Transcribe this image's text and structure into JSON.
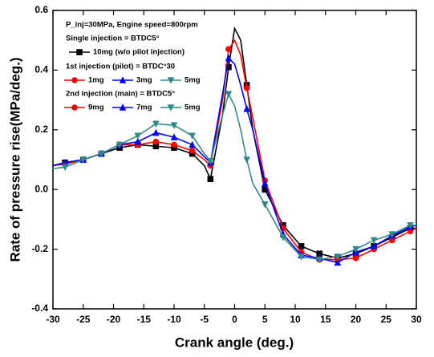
{
  "chart_data": {
    "type": "line",
    "x_label": "Crank angle (deg.)",
    "y_label": "Rate of pressure rise(MPa/deg.)",
    "annotation": "P_inj=30MPa, Engine speed=800rpm",
    "legend_titles": [
      "Single injection = BTDC5°",
      "1st injection (pilot) = BTDC°30",
      "2nd injection (main) = BTDC5°"
    ],
    "x": [
      -30,
      -28,
      -25,
      -22,
      -19,
      -16,
      -13,
      -10,
      -7,
      -5,
      -4,
      -2,
      -1,
      0,
      1,
      2,
      3,
      5,
      8,
      11,
      14,
      17,
      20,
      23,
      26,
      29,
      30
    ],
    "series": [
      {
        "name": "10mg (w/o pilot injection)",
        "color": "#000000",
        "marker": "square",
        "values": [
          0.08,
          0.09,
          0.1,
          0.12,
          0.14,
          0.15,
          0.145,
          0.14,
          0.12,
          0.08,
          0.035,
          0.25,
          0.41,
          0.54,
          0.5,
          0.35,
          0.2,
          0.0,
          -0.12,
          -0.19,
          -0.215,
          -0.23,
          -0.215,
          -0.19,
          -0.16,
          -0.13,
          -0.13
        ]
      },
      {
        "name": "1mg",
        "main_name": "9mg",
        "color": "#ff0000",
        "marker": "circle",
        "values": [
          0.08,
          0.085,
          0.1,
          0.12,
          0.15,
          0.15,
          0.16,
          0.15,
          0.13,
          0.1,
          0.08,
          0.3,
          0.47,
          0.5,
          0.45,
          0.34,
          0.24,
          0.03,
          -0.13,
          -0.21,
          -0.235,
          -0.235,
          -0.23,
          -0.2,
          -0.17,
          -0.14,
          -0.13
        ]
      },
      {
        "name": "3mg",
        "main_name": "7mg",
        "color": "#0000ff",
        "marker": "triangle-up",
        "values": [
          0.08,
          0.09,
          0.1,
          0.12,
          0.15,
          0.16,
          0.19,
          0.175,
          0.15,
          0.11,
          0.09,
          0.32,
          0.44,
          0.42,
          0.35,
          0.27,
          0.2,
          0.02,
          -0.15,
          -0.22,
          -0.23,
          -0.245,
          -0.21,
          -0.19,
          -0.155,
          -0.125,
          -0.12
        ]
      },
      {
        "name": "5mg",
        "main_name": "5mg",
        "color": "#2e8b8b",
        "marker": "triangle-down",
        "values": [
          0.07,
          0.075,
          0.1,
          0.12,
          0.15,
          0.18,
          0.22,
          0.215,
          0.18,
          0.12,
          0.095,
          0.25,
          0.32,
          0.28,
          0.2,
          0.1,
          0.02,
          -0.05,
          -0.16,
          -0.225,
          -0.235,
          -0.225,
          -0.2,
          -0.17,
          -0.15,
          -0.12,
          -0.12
        ]
      }
    ],
    "xlim": [
      -30,
      30
    ],
    "xticks": [
      -30,
      -25,
      -20,
      -15,
      -10,
      -5,
      0,
      5,
      10,
      15,
      20,
      25,
      30
    ],
    "ylim": [
      -0.4,
      0.6
    ],
    "yticks": [
      {
        "value": -0.4,
        "label": "-0.4"
      },
      {
        "value": -0.2,
        "label": "-0.2"
      },
      {
        "value": 0,
        "label": "0.0"
      },
      {
        "value": 0.2,
        "label": "0.2"
      },
      {
        "value": 0.4,
        "label": "0.4"
      },
      {
        "value": 0.6,
        "label": "0.6"
      }
    ],
    "grid": false
  }
}
